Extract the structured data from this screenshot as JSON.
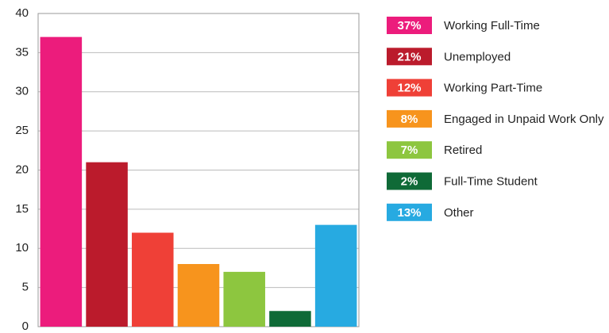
{
  "chart_data": {
    "type": "bar",
    "categories": [
      "Working Full-Time",
      "Unemployed",
      "Working Part-Time",
      "Engaged in Unpaid Work Only",
      "Retired",
      "Full-Time Student",
      "Other"
    ],
    "values": [
      37,
      21,
      12,
      8,
      7,
      2,
      13
    ],
    "value_labels": [
      "37%",
      "21%",
      "12%",
      "8%",
      "7%",
      "2%",
      "13%"
    ],
    "colors": [
      "#ec1c7c",
      "#bb1b2c",
      "#ef4037",
      "#f7941d",
      "#8dc63f",
      "#0f6a37",
      "#27aae1"
    ],
    "ylim": [
      0,
      40
    ],
    "yticks": [
      0,
      5,
      10,
      15,
      20,
      25,
      30,
      35,
      40
    ],
    "grid": true
  }
}
